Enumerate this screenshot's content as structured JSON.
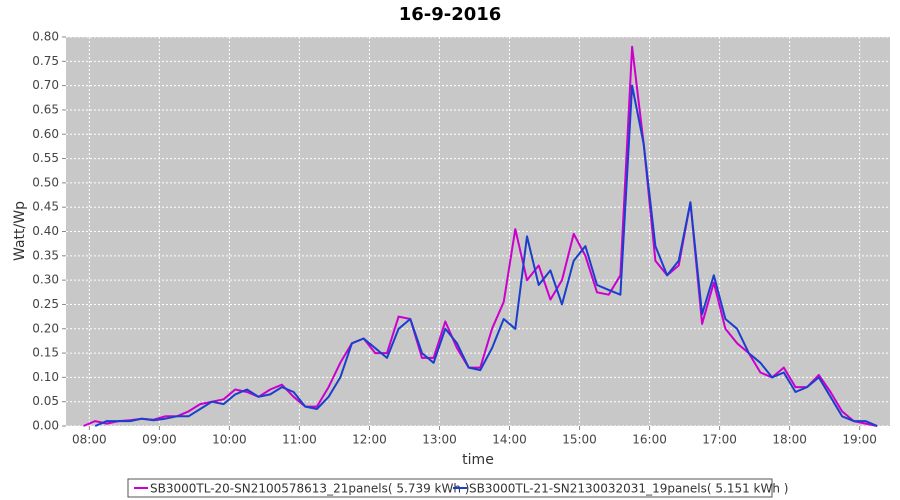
{
  "chart_data": {
    "type": "line",
    "title": "16-9-2016",
    "xlabel": "time",
    "ylabel": "Watt/Wp",
    "x": [
      "07:55",
      "08:05",
      "08:15",
      "08:25",
      "08:35",
      "08:45",
      "08:55",
      "09:05",
      "09:15",
      "09:25",
      "09:35",
      "09:45",
      "09:55",
      "10:05",
      "10:15",
      "10:25",
      "10:35",
      "10:45",
      "10:55",
      "11:05",
      "11:15",
      "11:25",
      "11:35",
      "11:45",
      "11:55",
      "12:05",
      "12:15",
      "12:25",
      "12:35",
      "12:45",
      "12:55",
      "13:05",
      "13:15",
      "13:25",
      "13:35",
      "13:45",
      "13:55",
      "14:05",
      "14:15",
      "14:25",
      "14:35",
      "14:45",
      "14:55",
      "15:05",
      "15:15",
      "15:25",
      "15:35",
      "15:45",
      "15:55",
      "16:05",
      "16:15",
      "16:25",
      "16:35",
      "16:45",
      "16:55",
      "17:05",
      "17:15",
      "17:25",
      "17:35",
      "17:45",
      "17:55",
      "18:05",
      "18:15",
      "18:25",
      "18:35",
      "18:45",
      "18:55",
      "19:05",
      "19:15"
    ],
    "series": [
      {
        "name": "SB3000TL-20-SN2100578613_21panels( 5.739 kWh )",
        "color": "#cc00cc",
        "values": [
          0.0,
          0.01,
          0.005,
          0.01,
          0.012,
          0.015,
          0.013,
          0.02,
          0.02,
          0.03,
          0.045,
          0.05,
          0.055,
          0.075,
          0.07,
          0.06,
          0.075,
          0.085,
          0.06,
          0.04,
          0.04,
          0.08,
          0.13,
          0.17,
          0.18,
          0.15,
          0.15,
          0.225,
          0.22,
          0.14,
          0.14,
          0.215,
          0.16,
          0.12,
          0.12,
          0.2,
          0.255,
          0.405,
          0.3,
          0.33,
          0.26,
          0.3,
          0.395,
          0.35,
          0.275,
          0.27,
          0.31,
          0.78,
          0.58,
          0.34,
          0.31,
          0.33,
          0.46,
          0.21,
          0.295,
          0.2,
          0.17,
          0.15,
          0.11,
          0.1,
          0.12,
          0.08,
          0.08,
          0.105,
          0.07,
          0.03,
          0.01,
          0.005,
          0.0
        ]
      },
      {
        "name": "SB3000TL-21-SN2130032031_19panels( 5.151 kWh )",
        "color": "#1a3fcc",
        "values": [
          null,
          0.0,
          0.01,
          0.01,
          0.01,
          0.015,
          0.012,
          0.015,
          0.02,
          0.02,
          0.035,
          0.05,
          0.045,
          0.065,
          0.075,
          0.06,
          0.065,
          0.08,
          0.07,
          0.04,
          0.035,
          0.06,
          0.1,
          0.17,
          0.18,
          0.16,
          0.14,
          0.2,
          0.22,
          0.15,
          0.13,
          0.2,
          0.17,
          0.12,
          0.115,
          0.16,
          0.22,
          0.2,
          0.39,
          0.29,
          0.32,
          0.25,
          0.34,
          0.37,
          0.29,
          0.28,
          0.27,
          0.7,
          0.58,
          0.37,
          0.31,
          0.34,
          0.46,
          0.23,
          0.31,
          0.22,
          0.2,
          0.15,
          0.13,
          0.1,
          0.11,
          0.07,
          0.08,
          0.1,
          0.06,
          0.02,
          0.01,
          0.01,
          0.0
        ]
      }
    ],
    "xlim": [
      "07:40",
      "19:26"
    ],
    "xticks": [
      "08:00",
      "09:00",
      "10:00",
      "11:00",
      "12:00",
      "13:00",
      "14:00",
      "15:00",
      "16:00",
      "17:00",
      "18:00",
      "19:00"
    ],
    "ylim": [
      0,
      0.8
    ],
    "yticks": [
      {
        "value": 0,
        "label": "0.00"
      },
      {
        "value": 0.05,
        "label": "0.05"
      },
      {
        "value": 0.1,
        "label": "0.10"
      },
      {
        "value": 0.15,
        "label": "0.15"
      },
      {
        "value": 0.2,
        "label": "0.20"
      },
      {
        "value": 0.25,
        "label": "0.25"
      },
      {
        "value": 0.3,
        "label": "0.30"
      },
      {
        "value": 0.35,
        "label": "0.35"
      },
      {
        "value": 0.4,
        "label": "0.40"
      },
      {
        "value": 0.45,
        "label": "0.45"
      },
      {
        "value": 0.5,
        "label": "0.50"
      },
      {
        "value": 0.55,
        "label": "0.55"
      },
      {
        "value": 0.6,
        "label": "0.60"
      },
      {
        "value": 0.65,
        "label": "0.65"
      },
      {
        "value": 0.7,
        "label": "0.70"
      },
      {
        "value": 0.75,
        "label": "0.75"
      },
      {
        "value": 0.8,
        "label": "0.80"
      }
    ],
    "grid": true,
    "legend": "bottom"
  }
}
